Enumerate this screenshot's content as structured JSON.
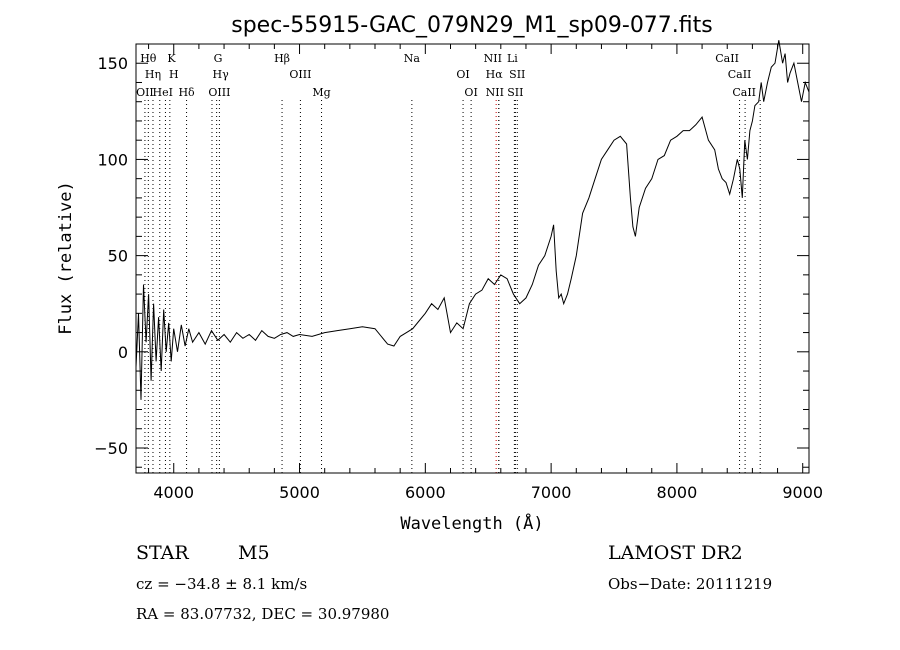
{
  "chart_data": {
    "type": "line",
    "title": "spec-55915-GAC_079N29_M1_sp09-077.fits",
    "xlabel": "Wavelength (Å)",
    "ylabel": "Flux (relative)",
    "xlim": [
      3700,
      9050
    ],
    "ylim": [
      -63,
      160
    ],
    "xticks": [
      4000,
      5000,
      6000,
      7000,
      8000,
      9000
    ],
    "yticks": [
      -50,
      0,
      50,
      100,
      150
    ],
    "grid": false,
    "legend": "none",
    "line_color": "#000000",
    "marker_color": "#000000",
    "h_marker_color": "#cc0000",
    "series": [
      {
        "x": [
          3700,
          3720,
          3740,
          3760,
          3780,
          3800,
          3820,
          3840,
          3860,
          3880,
          3900,
          3920,
          3940,
          3960,
          3980,
          4000,
          4030,
          4060,
          4090,
          4120,
          4150,
          4200,
          4250,
          4300,
          4350,
          4400,
          4450,
          4500,
          4550,
          4600,
          4650,
          4700,
          4750,
          4800,
          4850,
          4900,
          4950,
          5000,
          5100,
          5200,
          5300,
          5400,
          5500,
          5600,
          5700,
          5750,
          5800,
          5850,
          5900,
          5950,
          6000,
          6050,
          6100,
          6150,
          6200,
          6250,
          6300,
          6350,
          6400,
          6450,
          6500,
          6550,
          6600,
          6650,
          6700,
          6750,
          6800,
          6850,
          6900,
          6950,
          7000,
          7020,
          7040,
          7060,
          7080,
          7100,
          7130,
          7160,
          7200,
          7250,
          7300,
          7350,
          7400,
          7450,
          7500,
          7550,
          7600,
          7630,
          7650,
          7670,
          7700,
          7750,
          7800,
          7850,
          7900,
          7950,
          8000,
          8050,
          8100,
          8150,
          8200,
          8250,
          8300,
          8330,
          8360,
          8390,
          8420,
          8450,
          8480,
          8500,
          8520,
          8540,
          8560,
          8580,
          8600,
          8620,
          8650,
          8670,
          8690,
          8720,
          8750,
          8780,
          8810,
          8840,
          8860,
          8880,
          8900,
          8930,
          8960,
          8990,
          9020,
          9050
        ],
        "y": [
          -8,
          20,
          -25,
          35,
          5,
          30,
          -15,
          25,
          -5,
          18,
          -10,
          22,
          0,
          15,
          -5,
          12,
          0,
          14,
          3,
          12,
          5,
          10,
          4,
          11,
          6,
          9,
          5,
          10,
          7,
          9,
          6,
          11,
          8,
          7,
          9,
          10,
          8,
          9,
          8,
          10,
          11,
          12,
          13,
          12,
          4,
          3,
          8,
          10,
          12,
          16,
          20,
          25,
          22,
          28,
          10,
          15,
          12,
          25,
          30,
          32,
          38,
          35,
          40,
          38,
          30,
          25,
          28,
          35,
          45,
          50,
          60,
          66,
          42,
          28,
          30,
          25,
          30,
          38,
          50,
          72,
          80,
          90,
          100,
          105,
          110,
          112,
          108,
          80,
          65,
          60,
          75,
          85,
          90,
          100,
          102,
          110,
          112,
          115,
          115,
          118,
          122,
          110,
          105,
          95,
          90,
          88,
          82,
          90,
          100,
          95,
          80,
          110,
          100,
          115,
          120,
          128,
          130,
          140,
          130,
          140,
          148,
          150,
          162,
          150,
          155,
          140,
          145,
          150,
          140,
          130,
          140,
          135
        ]
      }
    ],
    "line_markers": [
      {
        "x": 3771,
        "row": 1,
        "label": "OII",
        "dx": 0
      },
      {
        "x": 3798,
        "row": 3,
        "label": "Hθ",
        "dx": 0
      },
      {
        "x": 3835,
        "row": 2,
        "label": "Hη",
        "dx": 0
      },
      {
        "x": 3889,
        "row": 1,
        "label": "HeI",
        "dx": 3
      },
      {
        "x": 3934,
        "row": 3,
        "label": "K",
        "dx": 6
      },
      {
        "x": 3969,
        "row": 2,
        "label": "H",
        "dx": 4
      },
      {
        "x": 4102,
        "row": 1,
        "label": "Hδ",
        "dx": 0
      },
      {
        "x": 4304,
        "row": 3,
        "label": "G",
        "dx": 6
      },
      {
        "x": 4341,
        "row": 2,
        "label": "Hγ",
        "dx": 4
      },
      {
        "x": 4363,
        "row": 1,
        "label": "OIII",
        "dx": 0
      },
      {
        "x": 4861,
        "row": 3,
        "label": "Hβ",
        "dx": 0
      },
      {
        "x": 5007,
        "row": 2,
        "label": "OIII",
        "dx": 0
      },
      {
        "x": 5175,
        "row": 1,
        "label": "Mg",
        "dx": 0
      },
      {
        "x": 5893,
        "row": 3,
        "label": "Na",
        "dx": 0
      },
      {
        "x": 6300,
        "row": 2,
        "label": "OI",
        "dx": 0
      },
      {
        "x": 6364,
        "row": 1,
        "label": "OI",
        "dx": 0
      },
      {
        "x": 6563,
        "row": 2,
        "label": "Hα",
        "dx": -2
      },
      {
        "x": 6584,
        "row": 3,
        "label": "NII",
        "dx": -6
      },
      {
        "x": 6584,
        "row": 1,
        "label": "NII",
        "dx": -4
      },
      {
        "x": 6708,
        "row": 3,
        "label": "Li",
        "dx": -2
      },
      {
        "x": 6716,
        "row": 1,
        "label": "SII",
        "dx": 0
      },
      {
        "x": 6731,
        "row": 2,
        "label": "SII",
        "dx": 0
      },
      {
        "x": 8498,
        "row": 2,
        "label": "CaII",
        "dx": 0
      },
      {
        "x": 8542,
        "row": 3,
        "label": "CaII",
        "dx": -18
      },
      {
        "x": 8662,
        "row": 1,
        "label": "CaII",
        "dx": -16
      }
    ]
  },
  "info": {
    "object_class": "STAR",
    "subclass": "M5",
    "survey": "LAMOST DR2",
    "cz": "cz = −34.8 ± 8.1 km/s",
    "obs_date": "Obs−Date: 20111219",
    "coords": "RA =  83.07732, DEC =  30.97980"
  }
}
